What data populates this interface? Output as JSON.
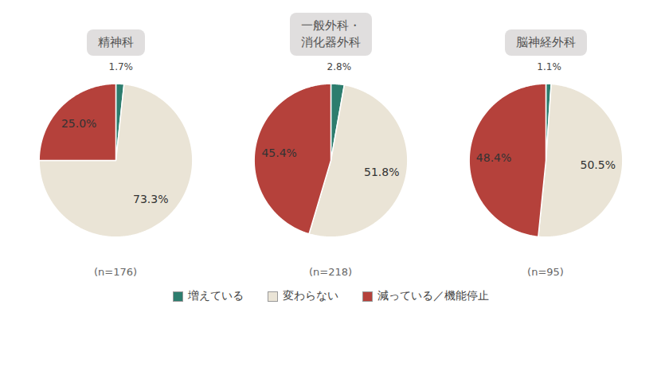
{
  "chart_data": [
    {
      "type": "pie",
      "title": "精神科",
      "annotation": "(n=176)",
      "categories": [
        "増えている",
        "変わらない",
        "減っている／機能停止"
      ],
      "values": [
        1.7,
        73.3,
        25.0
      ],
      "value_labels": [
        "1.7%",
        "73.3%",
        "25.0%"
      ],
      "colors": [
        "#2d7d6e",
        "#eae4d6",
        "#b5413b"
      ],
      "data_labels": true,
      "legend": "bottom"
    },
    {
      "type": "pie",
      "title": "一般外科・\n消化器外科",
      "annotation": "(n=218)",
      "categories": [
        "増えている",
        "変わらない",
        "減っている／機能停止"
      ],
      "values": [
        2.8,
        51.8,
        45.4
      ],
      "value_labels": [
        "2.8%",
        "51.8%",
        "45.4%"
      ],
      "colors": [
        "#2d7d6e",
        "#eae4d6",
        "#b5413b"
      ],
      "data_labels": true,
      "legend": "bottom"
    },
    {
      "type": "pie",
      "title": "脳神経外科",
      "annotation": "(n=95)",
      "categories": [
        "増えている",
        "変わらない",
        "減っている／機能停止"
      ],
      "values": [
        1.1,
        50.5,
        48.4
      ],
      "value_labels": [
        "1.1%",
        "50.5%",
        "48.4%"
      ],
      "colors": [
        "#2d7d6e",
        "#eae4d6",
        "#b5413b"
      ],
      "data_labels": true,
      "legend": "bottom"
    }
  ]
}
